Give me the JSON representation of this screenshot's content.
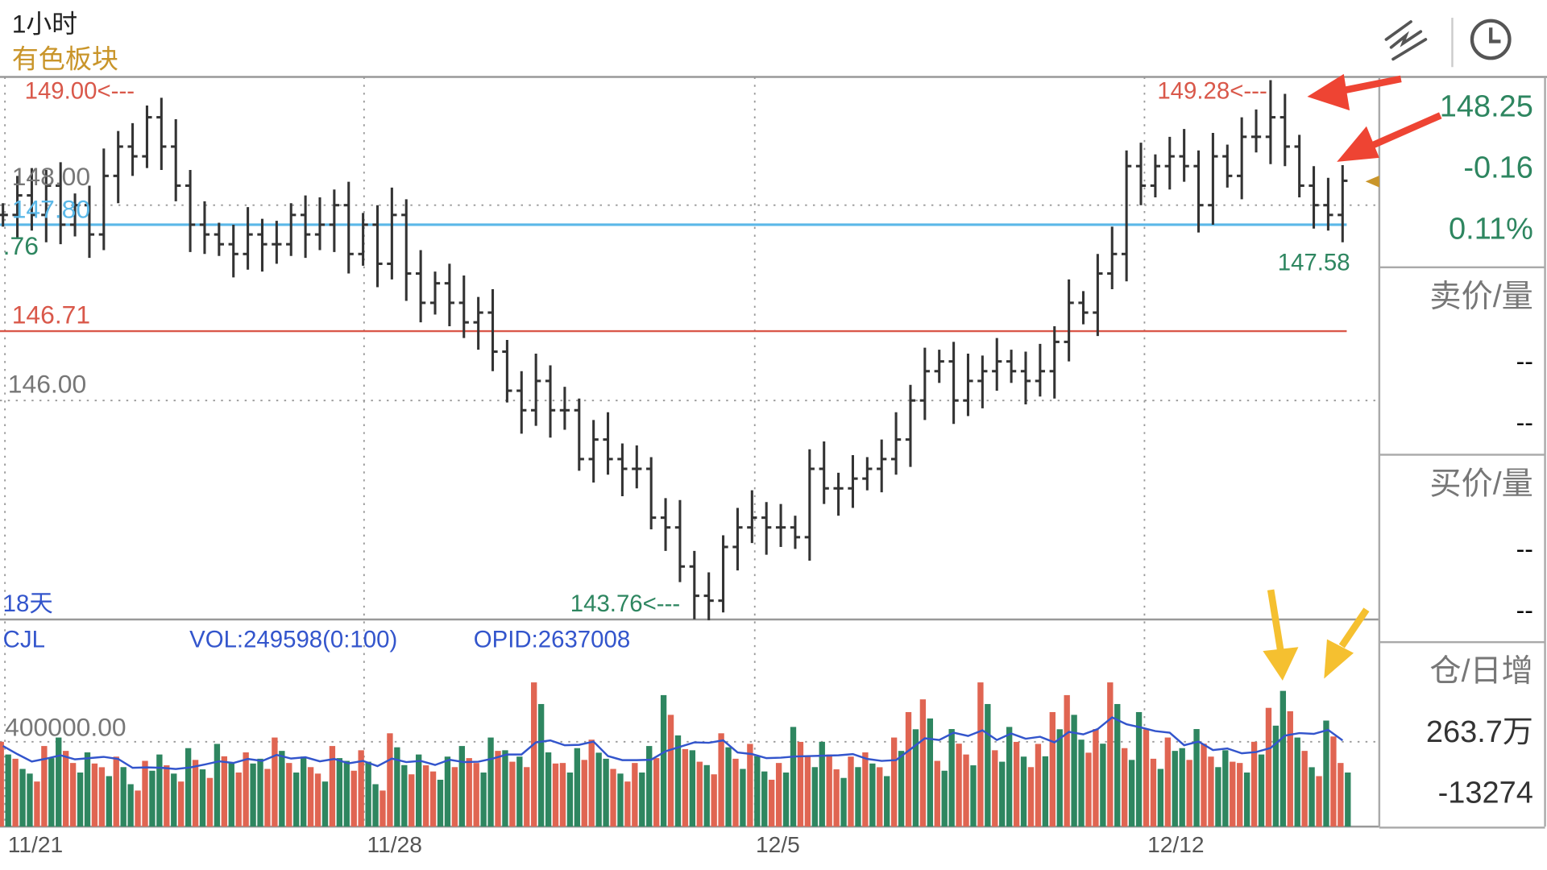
{
  "header": {
    "period": "1小时",
    "sector": "有色板块",
    "draw_tool_icon": "trend-line-icon",
    "clock_icon": "clock-icon"
  },
  "price_labels": {
    "high_left": "149.00<---",
    "grid_148": "148.00",
    "blue_line": "147.80",
    "green_partial": ".76",
    "red_line": "146.71",
    "grid_146": "146.00",
    "period_days": "18天",
    "high_right": "149.28<---",
    "low_right": "147.58",
    "low_mid": "143.76<---"
  },
  "volume_panel": {
    "name": "CJL",
    "vol": "VOL:249598(0:100)",
    "opid": "OPID:2637008",
    "grid_label": "400000.00"
  },
  "x_axis": [
    "11/21",
    "11/28",
    "12/5",
    "12/12"
  ],
  "quote": {
    "price": "148.25",
    "change": "-0.16",
    "change_pct": "0.11%",
    "ask_label": "卖价/量",
    "ask_price": "--",
    "ask_vol": "--",
    "bid_label": "买价/量",
    "bid_price": "--",
    "bid_vol": "--",
    "oi_label": "仓/日增",
    "oi": "263.7万",
    "oi_change": "-13274"
  },
  "colors": {
    "up": "#e06552",
    "down": "#2e8660",
    "bar": "#333333",
    "ma": "#3355cc",
    "blue_line": "#5bb8e8",
    "red_line": "#d9584a",
    "gold": "#c9952a"
  },
  "chart_data": {
    "type": "ohlc-bar",
    "title": "1小时",
    "price_ylim": [
      143.76,
      149.28
    ],
    "reference_lines": [
      147.8,
      146.71
    ],
    "gridlines": [
      148.0,
      146.0
    ],
    "close": [
      147.9,
      148.1,
      147.9,
      148.2,
      147.8,
      148.0,
      147.7,
      148.3,
      148.6,
      148.5,
      148.9,
      148.6,
      148.2,
      147.8,
      147.7,
      147.6,
      147.5,
      147.7,
      147.6,
      147.6,
      147.9,
      147.7,
      147.8,
      148.0,
      147.5,
      147.8,
      147.4,
      147.9,
      147.3,
      147.0,
      147.2,
      147.0,
      146.8,
      146.9,
      146.5,
      146.1,
      145.9,
      146.2,
      145.9,
      145.9,
      145.4,
      145.6,
      145.4,
      145.3,
      145.3,
      144.8,
      144.7,
      144.3,
      144.0,
      143.95,
      144.5,
      144.7,
      144.8,
      144.7,
      144.7,
      144.6,
      145.3,
      145.1,
      145.1,
      145.2,
      145.3,
      145.4,
      145.6,
      146.0,
      146.3,
      146.4,
      146.0,
      146.2,
      146.3,
      146.4,
      146.3,
      146.2,
      146.3,
      146.6,
      147.0,
      146.9,
      147.3,
      147.5,
      148.4,
      148.2,
      148.4,
      148.5,
      148.4,
      148.0,
      148.5,
      148.3,
      148.7,
      148.7,
      148.9,
      148.6,
      148.2,
      148.0,
      147.9,
      148.25
    ],
    "max_high": 149.28,
    "max_high_index": 88,
    "min_low": 143.76,
    "min_low_index": 48,
    "volume": [
      400000,
      320000,
      250000,
      380000,
      420000,
      300000,
      350000,
      280000,
      330000,
      200000,
      310000,
      340000,
      250000,
      370000,
      270000,
      390000,
      300000,
      350000,
      320000,
      420000,
      300000,
      330000,
      250000,
      380000,
      310000,
      360000,
      200000,
      440000,
      290000,
      340000,
      260000,
      330000,
      380000,
      300000,
      420000,
      360000,
      330000,
      680000,
      350000,
      300000,
      370000,
      410000,
      320000,
      250000,
      300000,
      380000,
      620000,
      430000,
      360000,
      290000,
      440000,
      320000,
      390000,
      260000,
      300000,
      470000,
      330000,
      400000,
      270000,
      330000,
      350000,
      280000,
      420000,
      540000,
      600000,
      310000,
      460000,
      340000,
      680000,
      360000,
      470000,
      330000,
      390000,
      540000,
      620000,
      410000,
      460000,
      680000,
      370000,
      540000,
      320000,
      420000,
      370000,
      460000,
      330000,
      360000,
      300000,
      400000,
      560000,
      640000,
      420000,
      280000,
      500000,
      300000
    ],
    "volume_ylim": [
      0,
      800000
    ]
  }
}
